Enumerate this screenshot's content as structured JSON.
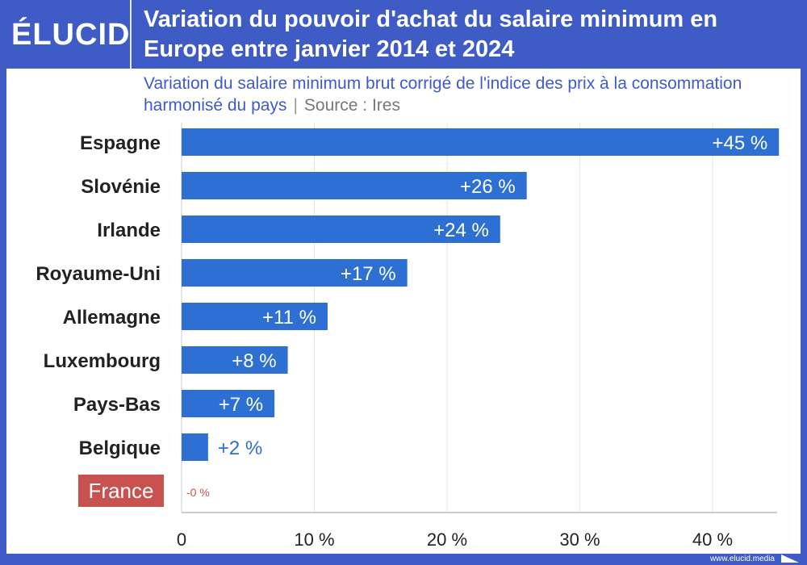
{
  "header": {
    "logo": "ÉLUCID",
    "title": "Variation du pouvoir d'achat du salaire minimum en Europe entre janvier 2014 et 2024",
    "subtitle": "Variation du salaire minimum brut corrigé de l'indice des prix à la consommation harmonisé du pays",
    "separator": "|",
    "source": "Source : Ires"
  },
  "footer": {
    "url": "www.elucid.media"
  },
  "colors": {
    "bar": "#2d6fd2",
    "highlight": "#c9514f",
    "header": "#3f5bc6"
  },
  "chart_data": {
    "type": "bar",
    "orientation": "horizontal",
    "categories": [
      "Espagne",
      "Slovénie",
      "Irlande",
      "Royaume-Uni",
      "Allemagne",
      "Luxembourg",
      "Pays-Bas",
      "Belgique",
      "France"
    ],
    "values": [
      45,
      26,
      24,
      17,
      11,
      8,
      7,
      2,
      0
    ],
    "data_labels": [
      "+45 %",
      "+26 %",
      "+24 %",
      "+17 %",
      "+11 %",
      "+8 %",
      "+7 %",
      "+2 %",
      "-0 %"
    ],
    "highlight": "France",
    "xlim": [
      0,
      45
    ],
    "xticks": [
      0,
      10,
      20,
      30,
      40
    ],
    "xtick_labels": [
      "0",
      "10 %",
      "20 %",
      "30 %",
      "40 %"
    ],
    "grid": true
  }
}
